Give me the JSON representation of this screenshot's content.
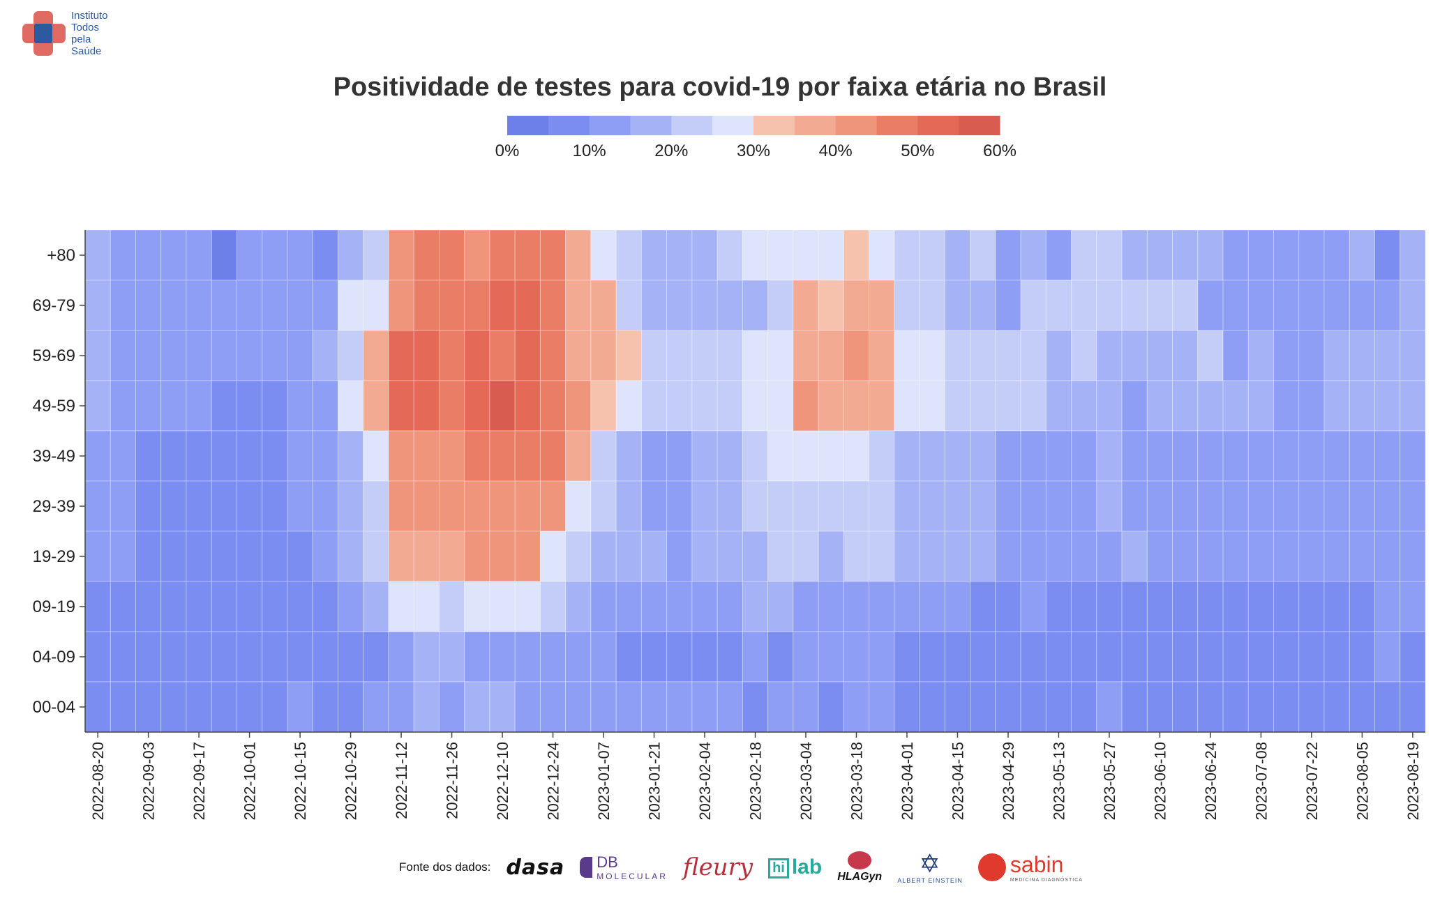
{
  "header": {
    "org_logo": "org-cross-icon",
    "org_name_lines": [
      "Instituto",
      "Todos",
      "pela",
      "Saúde"
    ]
  },
  "chart_data": {
    "type": "heatmap",
    "title": "Positividade de testes para covid-19 por faixa etária no Brasil",
    "xlabel": "",
    "ylabel": "",
    "value_unit": "%",
    "colorbar": {
      "range": [
        0,
        60
      ],
      "tick_values": [
        0,
        10,
        20,
        30,
        40,
        50,
        60
      ],
      "tick_labels": [
        "0%",
        "10%",
        "20%",
        "30%",
        "40%",
        "50%",
        "60%"
      ],
      "bins": 12,
      "colors": [
        "#6d7fe8",
        "#7b8df0",
        "#8d9ef4",
        "#a5b3f6",
        "#c3cdf8",
        "#dde4fc",
        "#f6c2ae",
        "#f3aa93",
        "#ef957c",
        "#ea7d66",
        "#e46a57",
        "#d85c50"
      ]
    },
    "grid": false,
    "weeks": [
      "2022-08-20",
      "2022-08-27",
      "2022-09-03",
      "2022-09-10",
      "2022-09-17",
      "2022-09-24",
      "2022-10-01",
      "2022-10-08",
      "2022-10-15",
      "2022-10-22",
      "2022-10-29",
      "2022-11-05",
      "2022-11-12",
      "2022-11-19",
      "2022-11-26",
      "2022-12-03",
      "2022-12-10",
      "2022-12-17",
      "2022-12-24",
      "2022-12-31",
      "2023-01-07",
      "2023-01-14",
      "2023-01-21",
      "2023-01-28",
      "2023-02-04",
      "2023-02-11",
      "2023-02-18",
      "2023-02-25",
      "2023-03-04",
      "2023-03-11",
      "2023-03-18",
      "2023-03-25",
      "2023-04-01",
      "2023-04-08",
      "2023-04-15",
      "2023-04-22",
      "2023-04-29",
      "2023-05-06",
      "2023-05-13",
      "2023-05-20",
      "2023-05-27",
      "2023-06-03",
      "2023-06-10",
      "2023-06-17",
      "2023-06-24",
      "2023-07-01",
      "2023-07-08",
      "2023-07-15",
      "2023-07-22",
      "2023-07-29",
      "2023-08-05",
      "2023-08-12",
      "2023-08-19"
    ],
    "x_tick_labels": [
      "2022-08-20",
      "2022-09-03",
      "2022-09-17",
      "2022-10-01",
      "2022-10-15",
      "2022-10-29",
      "2022-11-12",
      "2022-11-26",
      "2022-12-10",
      "2022-12-24",
      "2023-01-07",
      "2023-01-21",
      "2023-02-04",
      "2023-02-18",
      "2023-03-04",
      "2023-03-18",
      "2023-04-01",
      "2023-04-15",
      "2023-04-29",
      "2023-05-13",
      "2023-05-27",
      "2023-06-10",
      "2023-06-24",
      "2023-07-08",
      "2023-07-22",
      "2023-08-05",
      "2023-08-19"
    ],
    "age_groups": [
      "+80",
      "69-79",
      "59-69",
      "49-59",
      "39-49",
      "29-39",
      "19-29",
      "09-19",
      "04-09",
      "00-04"
    ],
    "values": [
      [
        15,
        14,
        12,
        11,
        11,
        4,
        11,
        11,
        11,
        9,
        19,
        22,
        41,
        45,
        45,
        41,
        46,
        46,
        47,
        39,
        27,
        22,
        19,
        17,
        19,
        24,
        25,
        27,
        28,
        28,
        30,
        29,
        23,
        23,
        15,
        20,
        14,
        17,
        14,
        22,
        22,
        17,
        17,
        19,
        16,
        11,
        11,
        11,
        11,
        11,
        15,
        9,
        16
      ],
      [
        15,
        14,
        12,
        11,
        11,
        11,
        11,
        11,
        11,
        14,
        25,
        28,
        43,
        46,
        46,
        45,
        51,
        54,
        48,
        39,
        35,
        24,
        18,
        18,
        17,
        17,
        16,
        23,
        37,
        31,
        36,
        36,
        21,
        21,
        19,
        15,
        14,
        20,
        20,
        20,
        21,
        22,
        22,
        22,
        11,
        11,
        11,
        11,
        11,
        11,
        12,
        12,
        17
      ],
      [
        15,
        14,
        12,
        11,
        11,
        11,
        11,
        11,
        14,
        17,
        23,
        35,
        51,
        50,
        45,
        54,
        46,
        54,
        49,
        38,
        36,
        30,
        22,
        20,
        22,
        23,
        25,
        29,
        37,
        36,
        42,
        37,
        28,
        25,
        23,
        22,
        21,
        20,
        18,
        20,
        17,
        17,
        17,
        19,
        20,
        11,
        17,
        11,
        11,
        17,
        17,
        16,
        16
      ],
      [
        15,
        12,
        11,
        11,
        11,
        8,
        8,
        8,
        11,
        14,
        27,
        35,
        51,
        50,
        46,
        51,
        57,
        51,
        47,
        40,
        34,
        29,
        20,
        20,
        22,
        23,
        25,
        29,
        40,
        36,
        36,
        36,
        28,
        25,
        23,
        20,
        21,
        20,
        15,
        15,
        16,
        13,
        15,
        19,
        15,
        15,
        16,
        13,
        14,
        16,
        16,
        17,
        16
      ],
      [
        12,
        12,
        8,
        8,
        8,
        8,
        8,
        8,
        11,
        11,
        19,
        27,
        42,
        44,
        41,
        46,
        45,
        45,
        45,
        37,
        24,
        17,
        14,
        14,
        18,
        19,
        23,
        26,
        28,
        28,
        26,
        22,
        19,
        17,
        15,
        15,
        14,
        14,
        14,
        14,
        15,
        14,
        14,
        14,
        11,
        11,
        14,
        14,
        11,
        11,
        14,
        14,
        14
      ],
      [
        12,
        12,
        8,
        8,
        8,
        8,
        8,
        8,
        11,
        11,
        19,
        24,
        42,
        41,
        41,
        44,
        44,
        40,
        40,
        27,
        20,
        17,
        14,
        14,
        17,
        18,
        23,
        24,
        24,
        24,
        24,
        22,
        19,
        17,
        15,
        15,
        14,
        14,
        14,
        14,
        15,
        14,
        14,
        14,
        14,
        14,
        14,
        14,
        14,
        14,
        14,
        14,
        14
      ],
      [
        12,
        12,
        8,
        8,
        8,
        8,
        8,
        8,
        8,
        11,
        19,
        24,
        36,
        35,
        39,
        40,
        40,
        40,
        27,
        24,
        17,
        15,
        15,
        11,
        17,
        16,
        18,
        24,
        23,
        19,
        20,
        20,
        17,
        17,
        15,
        15,
        14,
        14,
        14,
        11,
        11,
        15,
        11,
        11,
        11,
        11,
        11,
        11,
        11,
        11,
        11,
        14,
        14
      ],
      [
        8,
        8,
        8,
        8,
        8,
        8,
        8,
        8,
        8,
        8,
        11,
        19,
        25,
        25,
        24,
        27,
        29,
        29,
        23,
        17,
        12,
        11,
        11,
        11,
        11,
        12,
        15,
        15,
        14,
        14,
        14,
        12,
        11,
        11,
        11,
        8,
        8,
        11,
        8,
        8,
        8,
        8,
        8,
        8,
        8,
        8,
        8,
        8,
        8,
        8,
        8,
        11,
        14
      ],
      [
        8,
        8,
        8,
        8,
        8,
        8,
        8,
        8,
        8,
        8,
        8,
        5,
        11,
        15,
        15,
        14,
        14,
        14,
        14,
        11,
        11,
        8,
        8,
        8,
        8,
        8,
        11,
        6,
        11,
        11,
        11,
        11,
        8,
        8,
        8,
        8,
        8,
        8,
        8,
        8,
        8,
        8,
        8,
        8,
        8,
        8,
        8,
        8,
        8,
        8,
        8,
        11,
        6
      ],
      [
        8,
        8,
        8,
        8,
        8,
        8,
        8,
        8,
        11,
        8,
        8,
        11,
        14,
        19,
        14,
        15,
        15,
        14,
        11,
        11,
        11,
        11,
        11,
        11,
        11,
        11,
        6,
        11,
        11,
        6,
        11,
        11,
        8,
        8,
        8,
        8,
        8,
        8,
        8,
        8,
        11,
        8,
        8,
        8,
        8,
        8,
        8,
        8,
        8,
        8,
        8,
        6,
        8
      ]
    ]
  },
  "footer": {
    "sources_label": "Fonte dos dados:",
    "logos": {
      "dasa": "dasa",
      "db_main": "DB",
      "db_sub": "MOLECULAR",
      "fleury": "fleury",
      "hilab_box": "hi",
      "hilab_text": "lab",
      "hlagyn": "HLAGyn",
      "einstein": "ALBERT EINSTEIN",
      "sabin": "sabin",
      "sabin_sub": "MEDICINA DIAGNÓSTICA"
    }
  }
}
